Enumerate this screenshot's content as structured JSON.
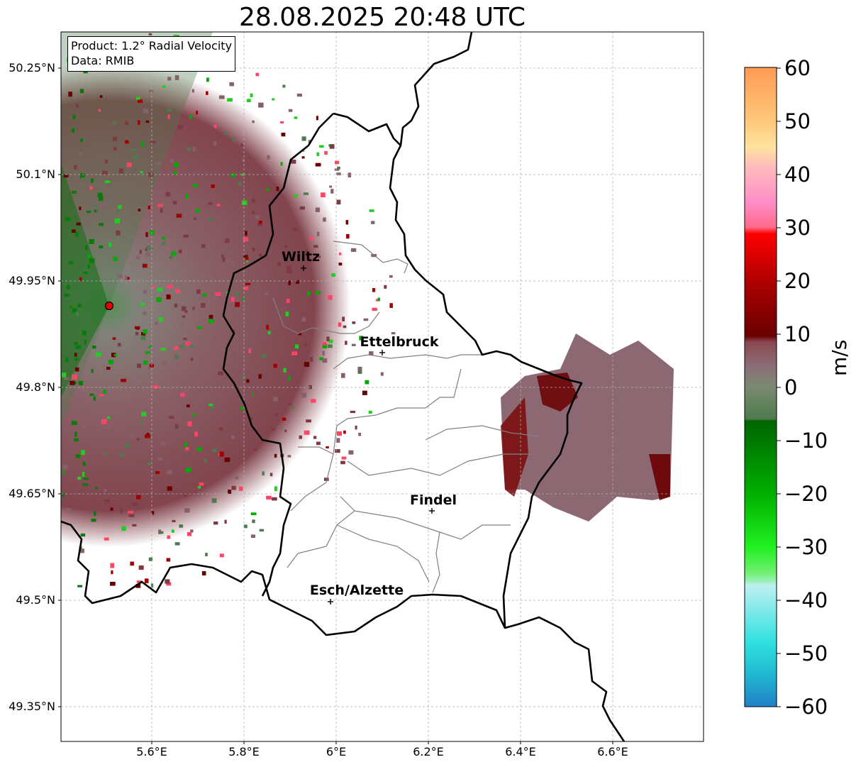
{
  "title": "28.08.2025 20:48 UTC",
  "infobox": {
    "product": "Product: 1.2° Radial Velocity",
    "data": "Data: RMIB"
  },
  "latitude_labels": [
    "50.25°N",
    "50.1°N",
    "49.95°N",
    "49.8°N",
    "49.65°N",
    "49.5°N",
    "49.35°N"
  ],
  "longitude_labels": [
    "5.6°E",
    "5.8°E",
    "6°E",
    "6.2°E",
    "6.4°E",
    "6.6°E"
  ],
  "cities": [
    {
      "name": "Wiltz",
      "lon": 5.93,
      "lat": 49.966
    },
    {
      "name": "Ettelbruck",
      "lon": 6.104,
      "lat": 49.848
    },
    {
      "name": "Findel",
      "lon": 6.21,
      "lat": 49.627
    },
    {
      "name": "Esch/Alzette",
      "lon": 5.98,
      "lat": 49.496
    }
  ],
  "radar_site": {
    "lon": 5.505,
    "lat": 49.914
  },
  "colorbar": {
    "label": "m/s",
    "ticks": [
      "60",
      "50",
      "40",
      "30",
      "20",
      "10",
      "0",
      "−10",
      "−20",
      "−30",
      "−40",
      "−50",
      "−60"
    ],
    "min": -60,
    "max": 60
  },
  "colors": {
    "border": "#000000",
    "canton_lines": "#808080",
    "radar_site": "#e00000",
    "inbound_green": "#00aa00",
    "outbound_red": "#a00000",
    "near_zero": "#86606a"
  }
}
